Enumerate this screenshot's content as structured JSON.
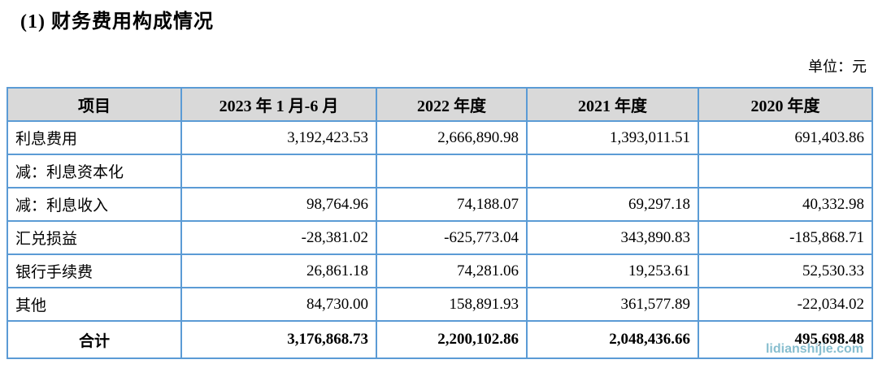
{
  "page": {
    "title": "(1) 财务费用构成情况",
    "unit_label": "单位：元"
  },
  "table": {
    "headers": [
      "项目",
      "2023 年 1 月-6 月",
      "2022 年度",
      "2021 年度",
      "2020 年度"
    ],
    "rows": [
      {
        "label": "利息费用",
        "values": [
          "3,192,423.53",
          "2,666,890.98",
          "1,393,011.51",
          "691,403.86"
        ]
      },
      {
        "label": "减：利息资本化",
        "values": [
          "",
          "",
          "",
          ""
        ]
      },
      {
        "label": "减：利息收入",
        "values": [
          "98,764.96",
          "74,188.07",
          "69,297.18",
          "40,332.98"
        ]
      },
      {
        "label": "汇兑损益",
        "values": [
          "-28,381.02",
          "-625,773.04",
          "343,890.83",
          "-185,868.71"
        ]
      },
      {
        "label": "银行手续费",
        "values": [
          "26,861.18",
          "74,281.06",
          "19,253.61",
          "52,530.33"
        ]
      },
      {
        "label": "其他",
        "values": [
          "84,730.00",
          "158,891.93",
          "361,577.89",
          "-22,034.02"
        ]
      }
    ],
    "total_row": {
      "label": "合计",
      "values": [
        "3,176,868.73",
        "2,200,102.86",
        "2,048,436.66",
        "495,698.48"
      ]
    }
  },
  "watermark": {
    "text": "lidianshijie.com",
    "color": "#7ab7ca"
  },
  "colors": {
    "table_border": "#5b9bd5",
    "header_bg": "#d9d9d9"
  }
}
